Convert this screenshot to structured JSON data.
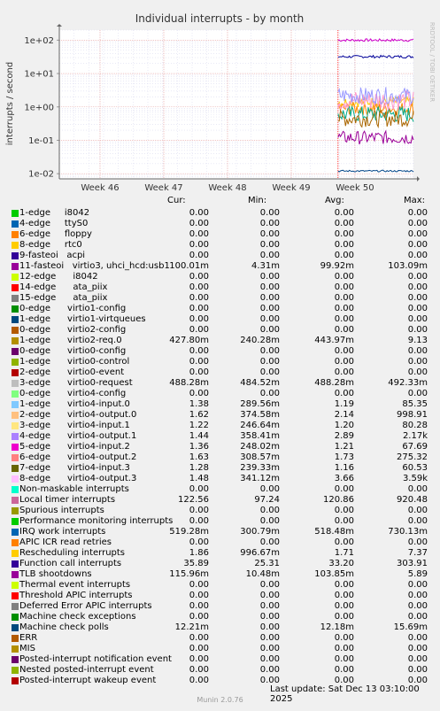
{
  "chart_data": {
    "type": "line",
    "title": "Individual interrupts - by month",
    "ylabel": "interrupts / second",
    "yscale": "log",
    "ylim": [
      0.007,
      200
    ],
    "yticks": [
      "1e+02",
      "1e+01",
      "1e+00",
      "1e-01",
      "1e-02"
    ],
    "ytick_values": [
      100,
      10,
      1,
      0.1,
      0.01
    ],
    "xticks": [
      "Week 46",
      "Week 47",
      "Week 48",
      "Week 49",
      "Week 50"
    ],
    "xlim": [
      0,
      1
    ],
    "xtick_positions": [
      0.115,
      0.295,
      0.475,
      0.655,
      0.835
    ],
    "data_start": 0.787,
    "side_label": "RRDTOOL / TOBI OETIKER",
    "grid": true,
    "series": [
      {
        "color": "#cc00cc",
        "level": 100,
        "noise": 0.08
      },
      {
        "color": "#000099",
        "level": 32,
        "noise": 0.08
      },
      {
        "color": "#ffcc00",
        "level": 1.4,
        "noise": 0.3
      },
      {
        "color": "#ff8800",
        "level": 0.9,
        "noise": 0.4
      },
      {
        "color": "#00aa88",
        "level": 0.6,
        "noise": 0.5
      },
      {
        "color": "#aa6600",
        "level": 0.45,
        "noise": 0.5
      },
      {
        "color": "#ff99cc",
        "level": 1.6,
        "noise": 0.6
      },
      {
        "color": "#9999ff",
        "level": 2.2,
        "noise": 0.5
      },
      {
        "color": "#990099",
        "level": 0.12,
        "noise": 0.4
      },
      {
        "color": "#004488",
        "level": 0.012,
        "noise": 0.05
      }
    ]
  },
  "legend": {
    "headers": {
      "cur": "Cur:",
      "min": "Min:",
      "avg": "Avg:",
      "max": "Max:"
    },
    "rows": [
      {
        "name": "1-edge     i8042",
        "color": "#00cc00",
        "cur": "0.00",
        "min": "0.00",
        "avg": "0.00",
        "max": "0.00"
      },
      {
        "name": "4-edge     ttyS0",
        "color": "#0066b3",
        "cur": "0.00",
        "min": "0.00",
        "avg": "0.00",
        "max": "0.00"
      },
      {
        "name": "6-edge     floppy",
        "color": "#ff8000",
        "cur": "0.00",
        "min": "0.00",
        "avg": "0.00",
        "max": "0.00"
      },
      {
        "name": "8-edge     rtc0",
        "color": "#ffcc00",
        "cur": "0.00",
        "min": "0.00",
        "avg": "0.00",
        "max": "0.00"
      },
      {
        "name": "9-fasteoi   acpi",
        "color": "#330099",
        "cur": "0.00",
        "min": "0.00",
        "avg": "0.00",
        "max": "0.00"
      },
      {
        "name": "11-fasteoi   virtio3, uhci_hcd:usb1",
        "color": "#990099",
        "cur": "100.01m",
        "min": "4.31m",
        "avg": "99.92m",
        "max": "103.09m"
      },
      {
        "name": "12-edge      i8042",
        "color": "#ccff00",
        "cur": "0.00",
        "min": "0.00",
        "avg": "0.00",
        "max": "0.00"
      },
      {
        "name": "14-edge      ata_piix",
        "color": "#ff0000",
        "cur": "0.00",
        "min": "0.00",
        "avg": "0.00",
        "max": "0.00"
      },
      {
        "name": "15-edge      ata_piix",
        "color": "#808080",
        "cur": "0.00",
        "min": "0.00",
        "avg": "0.00",
        "max": "0.00"
      },
      {
        "name": "0-edge      virtio1-config",
        "color": "#008f00",
        "cur": "0.00",
        "min": "0.00",
        "avg": "0.00",
        "max": "0.00"
      },
      {
        "name": "1-edge      virtio1-virtqueues",
        "color": "#00487d",
        "cur": "0.00",
        "min": "0.00",
        "avg": "0.00",
        "max": "0.00"
      },
      {
        "name": "0-edge      virtio2-config",
        "color": "#b35a00",
        "cur": "0.00",
        "min": "0.00",
        "avg": "0.00",
        "max": "0.00"
      },
      {
        "name": "1-edge      virtio2-req.0",
        "color": "#b38f00",
        "cur": "427.80m",
        "min": "240.28m",
        "avg": "443.97m",
        "max": "9.13"
      },
      {
        "name": "0-edge      virtio0-config",
        "color": "#6b006b",
        "cur": "0.00",
        "min": "0.00",
        "avg": "0.00",
        "max": "0.00"
      },
      {
        "name": "1-edge      virtio0-control",
        "color": "#8fb300",
        "cur": "0.00",
        "min": "0.00",
        "avg": "0.00",
        "max": "0.00"
      },
      {
        "name": "2-edge      virtio0-event",
        "color": "#b30000",
        "cur": "0.00",
        "min": "0.00",
        "avg": "0.00",
        "max": "0.00"
      },
      {
        "name": "3-edge      virtio0-request",
        "color": "#bebebe",
        "cur": "488.28m",
        "min": "484.52m",
        "avg": "488.28m",
        "max": "492.33m"
      },
      {
        "name": "0-edge      virtio4-config",
        "color": "#80ff80",
        "cur": "0.00",
        "min": "0.00",
        "avg": "0.00",
        "max": "0.00"
      },
      {
        "name": "1-edge      virtio4-input.0",
        "color": "#80c9ff",
        "cur": "1.38",
        "min": "289.56m",
        "avg": "1.19",
        "max": "85.35"
      },
      {
        "name": "2-edge      virtio4-output.0",
        "color": "#ffc080",
        "cur": "1.62",
        "min": "374.58m",
        "avg": "2.14",
        "max": "998.91"
      },
      {
        "name": "3-edge      virtio4-input.1",
        "color": "#ffe680",
        "cur": "1.22",
        "min": "246.64m",
        "avg": "1.20",
        "max": "80.28"
      },
      {
        "name": "4-edge      virtio4-output.1",
        "color": "#aa80ff",
        "cur": "1.44",
        "min": "358.41m",
        "avg": "2.89",
        "max": "2.17k"
      },
      {
        "name": "5-edge      virtio4-input.2",
        "color": "#ee00cc",
        "cur": "1.36",
        "min": "248.02m",
        "avg": "1.21",
        "max": "67.69"
      },
      {
        "name": "6-edge      virtio4-output.2",
        "color": "#ff8080",
        "cur": "1.63",
        "min": "308.57m",
        "avg": "1.73",
        "max": "275.32"
      },
      {
        "name": "7-edge      virtio4-input.3",
        "color": "#666600",
        "cur": "1.28",
        "min": "239.33m",
        "avg": "1.16",
        "max": "60.53"
      },
      {
        "name": "8-edge      virtio4-output.3",
        "color": "#ffbfff",
        "cur": "1.48",
        "min": "341.12m",
        "avg": "3.66",
        "max": "3.59k"
      },
      {
        "name": "Non-maskable interrupts",
        "color": "#00ffcc",
        "cur": "0.00",
        "min": "0.00",
        "avg": "0.00",
        "max": "0.00"
      },
      {
        "name": "Local timer interrupts",
        "color": "#cc6699",
        "cur": "122.56",
        "min": "97.24",
        "avg": "120.86",
        "max": "920.48"
      },
      {
        "name": "Spurious interrupts",
        "color": "#999900",
        "cur": "0.00",
        "min": "0.00",
        "avg": "0.00",
        "max": "0.00"
      },
      {
        "name": "Performance monitoring interrupts",
        "color": "#00cc00",
        "cur": "0.00",
        "min": "0.00",
        "avg": "0.00",
        "max": "0.00"
      },
      {
        "name": "IRQ work interrupts",
        "color": "#0066b3",
        "cur": "519.28m",
        "min": "300.79m",
        "avg": "518.48m",
        "max": "730.13m"
      },
      {
        "name": "APIC ICR read retries",
        "color": "#ff8000",
        "cur": "0.00",
        "min": "0.00",
        "avg": "0.00",
        "max": "0.00"
      },
      {
        "name": "Rescheduling interrupts",
        "color": "#ffcc00",
        "cur": "1.86",
        "min": "996.67m",
        "avg": "1.71",
        "max": "7.37"
      },
      {
        "name": "Function call interrupts",
        "color": "#330099",
        "cur": "35.89",
        "min": "25.31",
        "avg": "33.20",
        "max": "303.91"
      },
      {
        "name": "TLB shootdowns",
        "color": "#990099",
        "cur": "115.96m",
        "min": "10.48m",
        "avg": "103.85m",
        "max": "5.89"
      },
      {
        "name": "Thermal event interrupts",
        "color": "#ccff00",
        "cur": "0.00",
        "min": "0.00",
        "avg": "0.00",
        "max": "0.00"
      },
      {
        "name": "Threshold APIC interrupts",
        "color": "#ff0000",
        "cur": "0.00",
        "min": "0.00",
        "avg": "0.00",
        "max": "0.00"
      },
      {
        "name": "Deferred Error APIC interrupts",
        "color": "#808080",
        "cur": "0.00",
        "min": "0.00",
        "avg": "0.00",
        "max": "0.00"
      },
      {
        "name": "Machine check exceptions",
        "color": "#008f00",
        "cur": "0.00",
        "min": "0.00",
        "avg": "0.00",
        "max": "0.00"
      },
      {
        "name": "Machine check polls",
        "color": "#00487d",
        "cur": "12.21m",
        "min": "0.00",
        "avg": "12.18m",
        "max": "15.69m"
      },
      {
        "name": "ERR",
        "color": "#b35a00",
        "cur": "0.00",
        "min": "0.00",
        "avg": "0.00",
        "max": "0.00"
      },
      {
        "name": "MIS",
        "color": "#b38f00",
        "cur": "0.00",
        "min": "0.00",
        "avg": "0.00",
        "max": "0.00"
      },
      {
        "name": "Posted-interrupt notification event",
        "color": "#6b006b",
        "cur": "0.00",
        "min": "0.00",
        "avg": "0.00",
        "max": "0.00"
      },
      {
        "name": "Nested posted-interrupt event",
        "color": "#8fb300",
        "cur": "0.00",
        "min": "0.00",
        "avg": "0.00",
        "max": "0.00"
      },
      {
        "name": "Posted-interrupt wakeup event",
        "color": "#b30000",
        "cur": "0.00",
        "min": "0.00",
        "avg": "0.00",
        "max": "0.00"
      }
    ]
  },
  "footer": {
    "last_update": "Last update: Sat Dec 13 03:10:00 2025",
    "munin": "Munin 2.0.76"
  }
}
